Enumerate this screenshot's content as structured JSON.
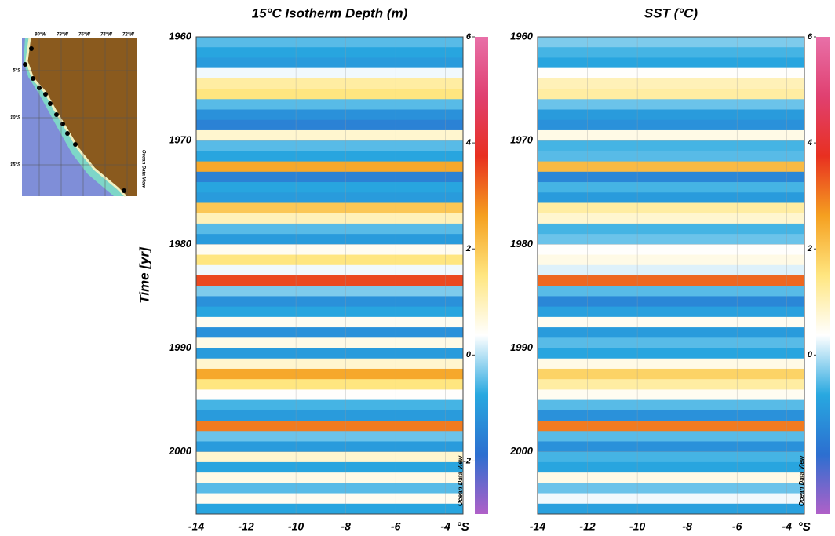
{
  "chart_data": [
    {
      "type": "heatmap",
      "title": "15°C Isotherm Depth (m)",
      "ylabel": "Time [yr]",
      "xlabel": "°S",
      "watermark": "Ocean Data View",
      "xlim": [
        -14,
        -3.3
      ],
      "xticks": [
        -14,
        -12,
        -10,
        -8,
        -6,
        -4
      ],
      "ylim": [
        1960,
        2006
      ],
      "yticks": [
        1960,
        1970,
        1980,
        1990,
        2000
      ],
      "y_inverted": true,
      "grid": true,
      "clim": [
        -3,
        6
      ],
      "colorbar_ticks": [
        -2,
        0,
        2,
        4,
        6
      ],
      "colors": [
        "#b060c8",
        "#2c6fd0",
        "#28a8e0",
        "#ffffff",
        "#ffe680",
        "#f5a020",
        "#e83020",
        "#e04070",
        "#e870a8"
      ],
      "years": [
        1960,
        1961,
        1962,
        1963,
        1964,
        1965,
        1966,
        1967,
        1968,
        1969,
        1970,
        1971,
        1972,
        1973,
        1974,
        1975,
        1976,
        1977,
        1978,
        1979,
        1980,
        1981,
        1982,
        1983,
        1984,
        1985,
        1986,
        1987,
        1988,
        1989,
        1990,
        1991,
        1992,
        1993,
        1994,
        1995,
        1996,
        1997,
        1998,
        1999,
        2000,
        2001,
        2002,
        2003,
        2004,
        2005
      ],
      "values": [
        -0.5,
        -0.8,
        -1.0,
        0.3,
        1.2,
        1.5,
        -0.5,
        -1.2,
        -1.5,
        0.8,
        -0.5,
        -0.8,
        2.5,
        -1.5,
        -0.8,
        -1.0,
        2.0,
        1.0,
        -0.5,
        -1.0,
        0.5,
        1.5,
        0.3,
        3.5,
        -0.3,
        -1.2,
        -0.8,
        0.5,
        -1.2,
        0.6,
        -1.0,
        0.8,
        2.5,
        1.5,
        0.4,
        -0.6,
        -1.0,
        3.0,
        -0.4,
        -1.0,
        0.8,
        -0.8,
        0.6,
        -0.5,
        0.5,
        -0.8
      ]
    },
    {
      "type": "heatmap",
      "title": "SST (°C)",
      "xlabel": "°S",
      "watermark": "Ocean Data View",
      "xlim": [
        -14,
        -3.3
      ],
      "xticks": [
        -14,
        -12,
        -10,
        -8,
        -6,
        -4
      ],
      "ylim": [
        1960,
        2006
      ],
      "yticks": [
        1960,
        1970,
        1980,
        1990,
        2000
      ],
      "y_inverted": true,
      "grid": true,
      "clim": [
        -3,
        6
      ],
      "colorbar_ticks": [
        0,
        2,
        4,
        6
      ],
      "colors": [
        "#b060c8",
        "#2c6fd0",
        "#28a8e0",
        "#ffffff",
        "#ffe680",
        "#f5a020",
        "#e83020",
        "#e04070",
        "#e870a8"
      ],
      "years": [
        1960,
        1961,
        1962,
        1963,
        1964,
        1965,
        1966,
        1967,
        1968,
        1969,
        1970,
        1971,
        1972,
        1973,
        1974,
        1975,
        1976,
        1977,
        1978,
        1979,
        1980,
        1981,
        1982,
        1983,
        1984,
        1985,
        1986,
        1987,
        1988,
        1989,
        1990,
        1991,
        1992,
        1993,
        1994,
        1995,
        1996,
        1997,
        1998,
        1999,
        2000,
        2001,
        2002,
        2003,
        2004,
        2005
      ],
      "values": [
        -0.3,
        -0.6,
        -0.8,
        0.4,
        1.0,
        1.2,
        -0.4,
        -1.0,
        -1.2,
        0.6,
        -0.6,
        -0.5,
        2.2,
        -1.4,
        -0.6,
        -1.0,
        1.2,
        0.8,
        -0.6,
        -0.4,
        0.4,
        0.6,
        0.2,
        3.2,
        -0.5,
        -1.4,
        -0.9,
        0.5,
        -1.0,
        -0.5,
        -0.8,
        0.6,
        1.8,
        1.2,
        0.5,
        -0.5,
        -1.2,
        3.0,
        -0.5,
        -1.2,
        -0.6,
        -0.8,
        0.6,
        -0.4,
        0.3,
        -0.9
      ]
    }
  ],
  "map_inset": {
    "lon_labels": [
      "80°W",
      "78°W",
      "76°W",
      "74°W",
      "72°W"
    ],
    "lat_labels": [
      "5°S",
      "10°S",
      "15°S"
    ],
    "credit": "Ocean Data View"
  }
}
